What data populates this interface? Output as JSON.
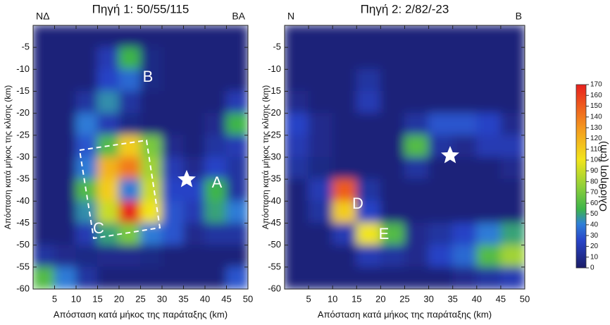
{
  "chart_data": [
    {
      "type": "heatmap",
      "title": "Πηγή 1: 50/55/115",
      "corner_labels": [
        "NΔ",
        "BA"
      ],
      "xlabel": "Απόσταση κατά μήκος της παράταξης (km)",
      "ylabel": "Απόσταση κατά μήκος της κλίσης (km)",
      "xlim": [
        0,
        50
      ],
      "ylim": [
        0,
        -60
      ],
      "xticks": [
        5,
        10,
        15,
        20,
        25,
        30,
        35,
        40,
        45,
        50
      ],
      "yticks": [
        -5,
        -10,
        -15,
        -20,
        -25,
        -30,
        -35,
        -40,
        -45,
        -50,
        -55,
        -60
      ],
      "annotations": [
        "B",
        "A",
        "C"
      ],
      "z": [
        [
          5,
          5,
          5,
          5,
          5,
          5,
          5,
          5,
          5,
          5
        ],
        [
          5,
          5,
          5,
          20,
          55,
          8,
          5,
          5,
          5,
          5
        ],
        [
          5,
          5,
          5,
          25,
          35,
          8,
          5,
          5,
          5,
          5
        ],
        [
          5,
          5,
          15,
          45,
          15,
          5,
          5,
          5,
          5,
          20
        ],
        [
          5,
          5,
          40,
          20,
          8,
          5,
          5,
          5,
          10,
          55
        ],
        [
          5,
          5,
          30,
          60,
          110,
          70,
          10,
          5,
          15,
          20
        ],
        [
          5,
          5,
          40,
          120,
          140,
          80,
          20,
          10,
          25,
          15
        ],
        [
          5,
          5,
          60,
          110,
          40,
          90,
          25,
          25,
          55,
          15
        ],
        [
          5,
          5,
          45,
          90,
          170,
          100,
          30,
          20,
          50,
          40
        ],
        [
          5,
          5,
          20,
          50,
          70,
          40,
          30,
          10,
          15,
          15
        ],
        [
          15,
          10,
          8,
          10,
          10,
          8,
          5,
          5,
          5,
          5
        ],
        [
          60,
          40,
          15,
          5,
          5,
          5,
          5,
          5,
          5,
          30
        ]
      ]
    },
    {
      "type": "heatmap",
      "title": "Πηγή 2: 2/82/-23",
      "corner_labels": [
        "N",
        "B"
      ],
      "xlabel": "Απόσταση κατά μήκος της παράταξης (km)",
      "ylabel": "Απόσταση κατά μήκος της κλίσης (km)",
      "xlim": [
        0,
        50
      ],
      "ylim": [
        0,
        -60
      ],
      "xticks": [
        5,
        10,
        15,
        20,
        25,
        30,
        35,
        40,
        45,
        50
      ],
      "yticks": [
        -5,
        -10,
        -15,
        -20,
        -25,
        -30,
        -35,
        -40,
        -45,
        -50,
        -55,
        -60
      ],
      "annotations": [
        "D",
        "E"
      ],
      "z": [
        [
          5,
          5,
          5,
          5,
          5,
          5,
          5,
          5,
          5,
          5
        ],
        [
          5,
          5,
          5,
          5,
          5,
          5,
          5,
          5,
          5,
          5
        ],
        [
          5,
          5,
          5,
          15,
          5,
          5,
          5,
          5,
          5,
          5
        ],
        [
          10,
          5,
          5,
          20,
          5,
          5,
          5,
          5,
          5,
          5
        ],
        [
          25,
          10,
          5,
          5,
          5,
          15,
          30,
          30,
          25,
          10
        ],
        [
          20,
          10,
          5,
          5,
          5,
          60,
          15,
          10,
          20,
          20
        ],
        [
          15,
          8,
          5,
          5,
          5,
          15,
          5,
          5,
          5,
          10
        ],
        [
          5,
          20,
          150,
          15,
          5,
          5,
          5,
          5,
          5,
          5
        ],
        [
          5,
          15,
          110,
          25,
          5,
          5,
          5,
          5,
          5,
          5
        ],
        [
          5,
          5,
          20,
          100,
          60,
          10,
          15,
          25,
          40,
          50
        ],
        [
          5,
          5,
          5,
          20,
          15,
          10,
          25,
          35,
          60,
          80
        ],
        [
          5,
          5,
          5,
          5,
          5,
          5,
          5,
          10,
          15,
          20
        ]
      ]
    }
  ],
  "colorbar": {
    "label": "Ολίσθηση (cm)",
    "lim": [
      0,
      170
    ],
    "ticks": [
      0,
      10,
      20,
      30,
      40,
      50,
      60,
      70,
      80,
      90,
      100,
      110,
      120,
      130,
      140,
      150,
      160,
      170
    ]
  }
}
